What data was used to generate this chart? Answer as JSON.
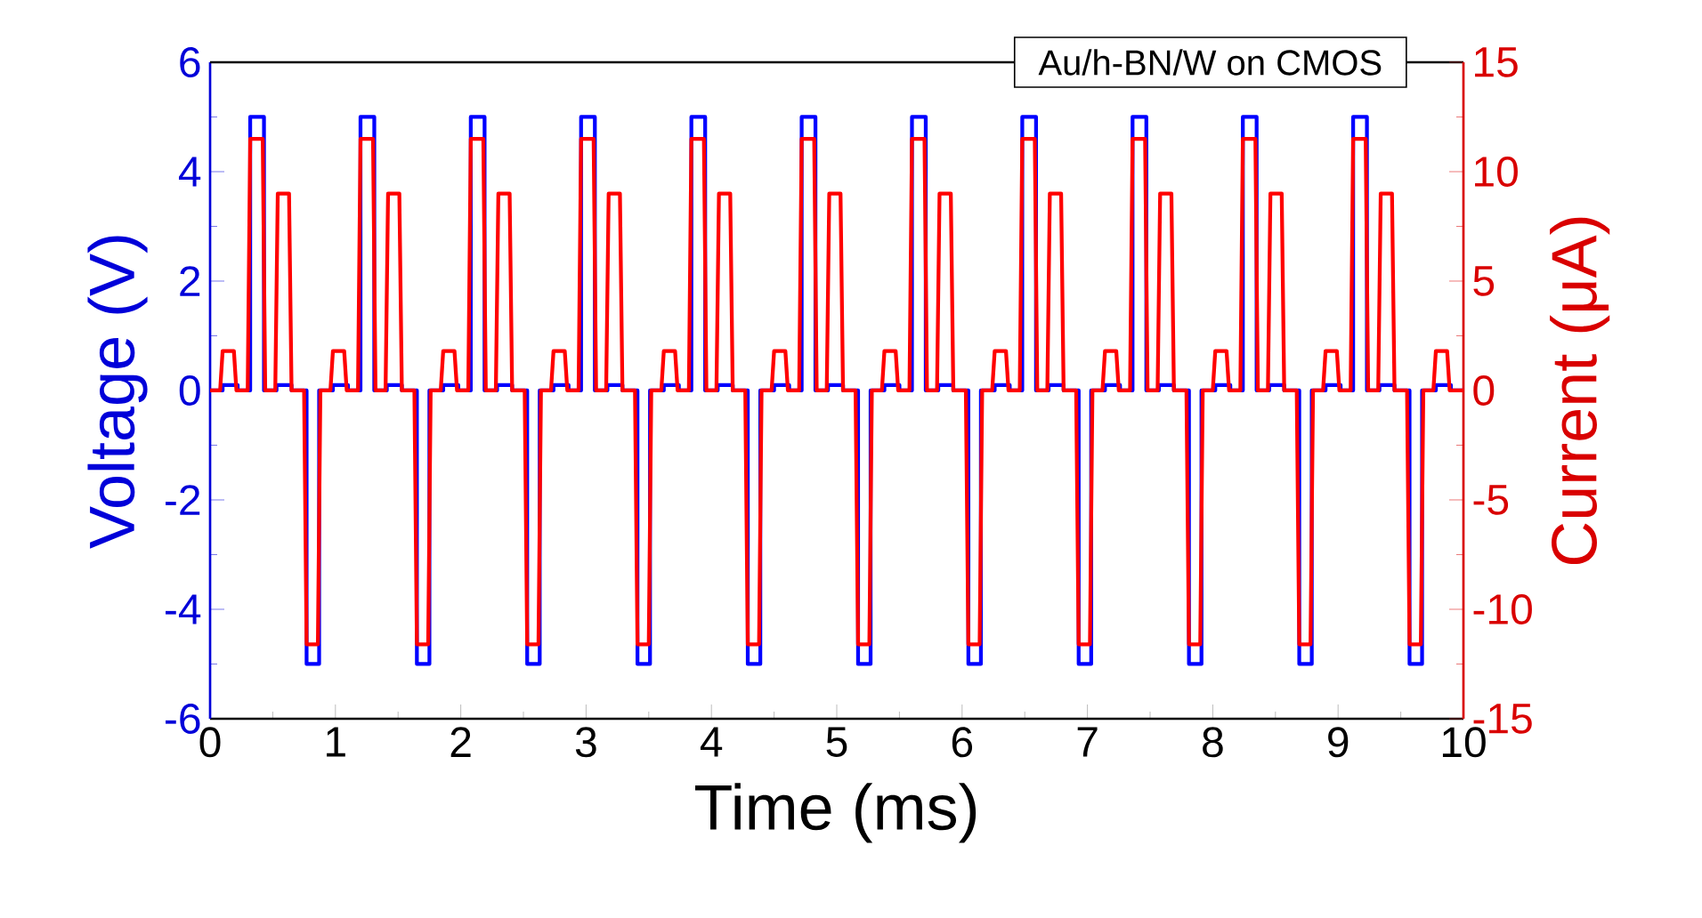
{
  "chart_data": {
    "type": "line",
    "title": "Au/h-BN/W on CMOS",
    "xlabel": "Time (ms)",
    "ylabel": "Voltage (V)",
    "y2label": "Current (μA)",
    "xlim": [
      0,
      10
    ],
    "xticks": [
      0,
      1,
      2,
      3,
      4,
      5,
      6,
      7,
      8,
      9,
      10
    ],
    "ylim": [
      -6,
      6
    ],
    "yticks": [
      -6,
      -4,
      -2,
      0,
      2,
      4,
      6
    ],
    "y2lim": [
      -15,
      15
    ],
    "y2ticks": [
      -15,
      -10,
      -5,
      0,
      5,
      10,
      15
    ],
    "series": [
      {
        "color": "#0000ff",
        "x": [
          0,
          0.1,
          0.1,
          0.22,
          0.22,
          0.32,
          0.32,
          0.43,
          0.43,
          0.53,
          0.53,
          0.65,
          0.65,
          0.77,
          0.77,
          0.87,
          0.87,
          0.98,
          0.98,
          1.1,
          1.1,
          1.2,
          1.2,
          1.31,
          1.31,
          1.41,
          1.41,
          1.53,
          1.53,
          1.65,
          1.65,
          1.75,
          1.75,
          1.86,
          1.86,
          1.98,
          1.98,
          2.08,
          2.08,
          2.19,
          2.19,
          2.29,
          2.29,
          2.41,
          2.41,
          2.53,
          2.53,
          2.63,
          2.63,
          2.74,
          2.74,
          2.86,
          2.86,
          2.96,
          2.96,
          3.07,
          3.07,
          3.17,
          3.17,
          3.29,
          3.29,
          3.41,
          3.41,
          3.51,
          3.51,
          3.62,
          3.62,
          3.74,
          3.74,
          3.84,
          3.84,
          3.95,
          3.95,
          4.05,
          4.05,
          4.17,
          4.17,
          4.29,
          4.29,
          4.39,
          4.39,
          4.5,
          4.5,
          4.62,
          4.62,
          4.72,
          4.72,
          4.83,
          4.83,
          4.93,
          4.93,
          5.05,
          5.05,
          5.17,
          5.17,
          5.27,
          5.27,
          5.38,
          5.38,
          5.5,
          5.5,
          5.6,
          5.6,
          5.71,
          5.71,
          5.81,
          5.81,
          5.93,
          5.93,
          6.05,
          6.05,
          6.15,
          6.15,
          6.26,
          6.26,
          6.38,
          6.38,
          6.48,
          6.48,
          6.59,
          6.59,
          6.69,
          6.69,
          6.81,
          6.81,
          6.93,
          6.93,
          7.03,
          7.03,
          7.14,
          7.14,
          7.26,
          7.26,
          7.36,
          7.36,
          7.47,
          7.47,
          7.57,
          7.57,
          7.69,
          7.69,
          7.81,
          7.81,
          7.91,
          7.91,
          8.02,
          8.02,
          8.14,
          8.14,
          8.24,
          8.24,
          8.35,
          8.35,
          8.45,
          8.45,
          8.57,
          8.57,
          8.69,
          8.69,
          8.79,
          8.79,
          8.9,
          8.9,
          9.02,
          9.02,
          9.12,
          9.12,
          9.23,
          9.23,
          9.33,
          9.33,
          9.45,
          9.45,
          9.57,
          9.57,
          9.67,
          9.67,
          9.78,
          9.78,
          9.9,
          9.9,
          10
        ],
        "values": [
          0,
          0,
          0.1,
          0.1,
          0,
          0,
          5,
          5,
          0,
          0,
          0.1,
          0.1,
          0,
          0,
          -5,
          -5,
          0,
          0,
          0.1,
          0.1,
          0,
          0,
          5,
          5,
          0,
          0,
          0.1,
          0.1,
          0,
          0,
          -5,
          -5,
          0,
          0,
          0.1,
          0.1,
          0,
          0,
          5,
          5,
          0,
          0,
          0.1,
          0.1,
          0,
          0,
          -5,
          -5,
          0,
          0,
          0.1,
          0.1,
          0,
          0,
          5,
          5,
          0,
          0,
          0.1,
          0.1,
          0,
          0,
          -5,
          -5,
          0,
          0,
          0.1,
          0.1,
          0,
          0,
          5,
          5,
          0,
          0,
          0.1,
          0.1,
          0,
          0,
          -5,
          -5,
          0,
          0,
          0.1,
          0.1,
          0,
          0,
          5,
          5,
          0,
          0,
          0.1,
          0.1,
          0,
          0,
          -5,
          -5,
          0,
          0,
          0.1,
          0.1,
          0,
          0,
          5,
          5,
          0,
          0,
          0.1,
          0.1,
          0,
          0,
          -5,
          -5,
          0,
          0,
          0.1,
          0.1,
          0,
          0,
          5,
          5,
          0,
          0,
          0.1,
          0.1,
          0,
          0,
          -5,
          -5,
          0,
          0,
          0.1,
          0.1,
          0,
          0,
          5,
          5,
          0,
          0,
          0.1,
          0.1,
          0,
          0,
          -5,
          -5,
          0,
          0,
          0.1,
          0.1,
          0,
          0,
          5,
          5,
          0,
          0,
          0.1,
          0.1,
          0,
          0,
          -5,
          -5,
          0,
          0,
          0.1,
          0.1,
          0,
          0,
          5,
          5,
          0,
          0,
          0.1,
          0.1,
          0,
          0,
          -5,
          -5,
          0,
          0,
          0.1,
          0.1,
          0,
          0
        ]
      },
      {
        "color": "#ff0000",
        "axis": "y2",
        "x": [
          0,
          0.08,
          0.1,
          0.19,
          0.21,
          0.3,
          0.32,
          0.42,
          0.44,
          0.52,
          0.54,
          0.63,
          0.65,
          0.75,
          0.77,
          0.86,
          0.88,
          0.96,
          0.98,
          1.07,
          1.09,
          1.18,
          1.2,
          1.3,
          1.32,
          1.4,
          1.42,
          1.51,
          1.53,
          1.63,
          1.65,
          1.74,
          1.76,
          1.84,
          1.86,
          1.95,
          1.97,
          2.06,
          2.08,
          2.18,
          2.2,
          2.28,
          2.3,
          2.39,
          2.41,
          2.51,
          2.53,
          2.62,
          2.64,
          2.72,
          2.74,
          2.83,
          2.85,
          2.94,
          2.96,
          3.06,
          3.08,
          3.16,
          3.18,
          3.27,
          3.29,
          3.39,
          3.41,
          3.5,
          3.52,
          3.6,
          3.62,
          3.71,
          3.73,
          3.82,
          3.84,
          3.94,
          3.96,
          4.04,
          4.06,
          4.15,
          4.17,
          4.27,
          4.29,
          4.38,
          4.4,
          4.48,
          4.5,
          4.59,
          4.61,
          4.7,
          4.72,
          4.82,
          4.84,
          4.92,
          4.94,
          5.03,
          5.05,
          5.15,
          5.17,
          5.26,
          5.28,
          5.36,
          5.38,
          5.47,
          5.49,
          5.58,
          5.6,
          5.7,
          5.72,
          5.8,
          5.82,
          5.91,
          5.93,
          6.03,
          6.05,
          6.14,
          6.16,
          6.24,
          6.26,
          6.35,
          6.37,
          6.46,
          6.48,
          6.58,
          6.6,
          6.68,
          6.7,
          6.79,
          6.81,
          6.91,
          6.93,
          7.02,
          7.04,
          7.12,
          7.14,
          7.23,
          7.25,
          7.34,
          7.36,
          7.46,
          7.48,
          7.56,
          7.58,
          7.67,
          7.69,
          7.79,
          7.81,
          7.9,
          7.92,
          8.0,
          8.02,
          8.11,
          8.13,
          8.22,
          8.24,
          8.34,
          8.36,
          8.44,
          8.46,
          8.55,
          8.57,
          8.67,
          8.69,
          8.78,
          8.8,
          8.88,
          8.9,
          8.99,
          9.01,
          9.1,
          9.12,
          9.22,
          9.24,
          9.32,
          9.34,
          9.43,
          9.45,
          9.55,
          9.57,
          9.66,
          9.68,
          9.76,
          9.78,
          9.87,
          9.89,
          10
        ],
        "values": [
          0,
          0,
          1.8,
          1.8,
          0,
          0,
          11.5,
          11.5,
          0,
          0,
          9,
          9,
          0,
          0,
          -11.6,
          -11.6,
          0,
          0,
          1.8,
          1.8,
          0,
          0,
          11.5,
          11.5,
          0,
          0,
          9,
          9,
          0,
          0,
          -11.6,
          -11.6,
          0,
          0,
          1.8,
          1.8,
          0,
          0,
          11.5,
          11.5,
          0,
          0,
          9,
          9,
          0,
          0,
          -11.6,
          -11.6,
          0,
          0,
          1.8,
          1.8,
          0,
          0,
          11.5,
          11.5,
          0,
          0,
          9,
          9,
          0,
          0,
          -11.6,
          -11.6,
          0,
          0,
          1.8,
          1.8,
          0,
          0,
          11.5,
          11.5,
          0,
          0,
          9,
          9,
          0,
          0,
          -11.6,
          -11.6,
          0,
          0,
          1.8,
          1.8,
          0,
          0,
          11.5,
          11.5,
          0,
          0,
          9,
          9,
          0,
          0,
          -11.6,
          -11.6,
          0,
          0,
          1.8,
          1.8,
          0,
          0,
          11.5,
          11.5,
          0,
          0,
          9,
          9,
          0,
          0,
          -11.6,
          -11.6,
          0,
          0,
          1.8,
          1.8,
          0,
          0,
          11.5,
          11.5,
          0,
          0,
          9,
          9,
          0,
          0,
          -11.6,
          -11.6,
          0,
          0,
          1.8,
          1.8,
          0,
          0,
          11.5,
          11.5,
          0,
          0,
          9,
          9,
          0,
          0,
          -11.6,
          -11.6,
          0,
          0,
          1.8,
          1.8,
          0,
          0,
          11.5,
          11.5,
          0,
          0,
          9,
          9,
          0,
          0,
          -11.6,
          -11.6,
          0,
          0,
          1.8,
          1.8,
          0,
          0,
          11.5,
          11.5,
          0,
          0,
          9,
          9,
          0,
          0,
          -11.6,
          -11.6,
          0,
          0,
          1.8,
          1.8,
          0,
          0
        ]
      }
    ]
  }
}
